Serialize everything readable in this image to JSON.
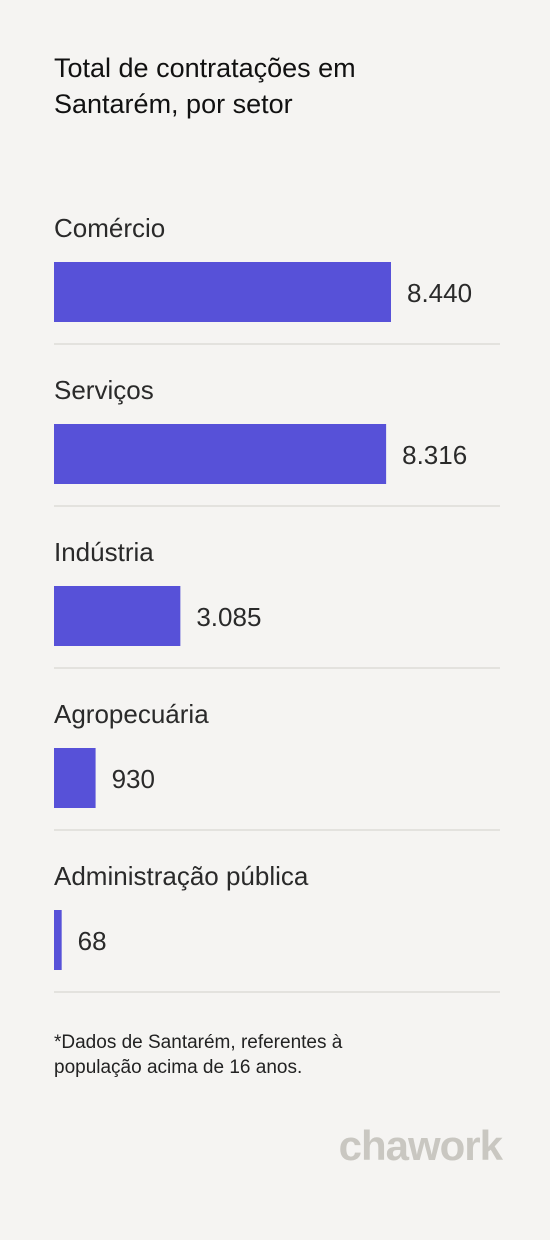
{
  "chart_data": {
    "type": "bar",
    "orientation": "horizontal",
    "title": "Total de contratações em Santarém, por setor",
    "categories": [
      "Comércio",
      "Serviços",
      "Indústria",
      "Agropecuária",
      "Administração pública"
    ],
    "values": [
      8440,
      8316,
      3085,
      930,
      68
    ],
    "value_labels": [
      "8.440",
      "8.316",
      "3.085",
      "930",
      "68"
    ],
    "color": "#5751d8",
    "footnote": "*Dados de Santarém, referentes à população acima de 16 anos.",
    "brand": "chawork"
  }
}
